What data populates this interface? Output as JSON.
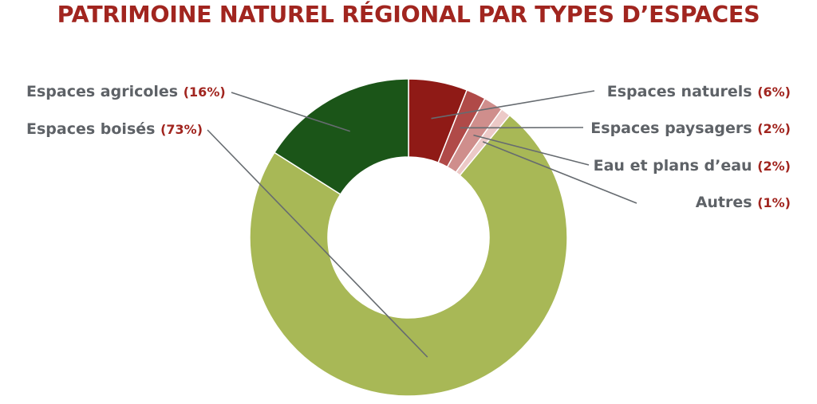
{
  "chart_data": {
    "type": "pie",
    "variant": "donut",
    "title": "PATRIMOINE NATUREL RÉGIONAL PAR TYPES D’ESPACES",
    "start_angle_deg": 0,
    "direction": "clockwise",
    "slices": [
      {
        "label": "Espaces naturels",
        "pct_label": "(6%)",
        "value": 6,
        "color": "#8f1a16",
        "side": "right"
      },
      {
        "label": "Espaces paysagers",
        "pct_label": "(2%)",
        "value": 2,
        "color": "#b04a48",
        "side": "right"
      },
      {
        "label": "Eau et plans d’eau",
        "pct_label": "(2%)",
        "value": 2,
        "color": "#cf8e8c",
        "side": "right"
      },
      {
        "label": "Autres",
        "pct_label": "(1%)",
        "value": 1,
        "color": "#ecc9c7",
        "side": "right"
      },
      {
        "label": "Espaces boisés",
        "pct_label": "(73%)",
        "value": 73,
        "color": "#a8b856",
        "side": "left"
      },
      {
        "label": "Espaces agricoles",
        "pct_label": "(16%)",
        "value": 16,
        "color": "#1b5518",
        "side": "left"
      }
    ]
  }
}
